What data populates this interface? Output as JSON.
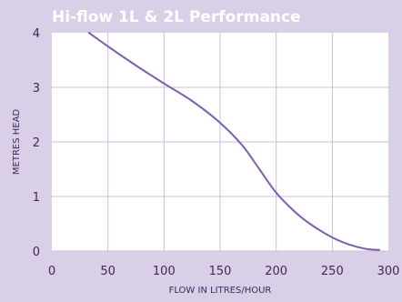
{
  "colors": {
    "background": "#d9cfe6",
    "plot_background": "#ffffff",
    "grid": "#c9bedb",
    "line": "#7e5fac",
    "title": "#ffffff",
    "text": "#3d2a57"
  },
  "chart_data": {
    "type": "line",
    "title": "Hi-flow 1L & 2L Performance",
    "xlabel": "FLOW IN LITRES/HOUR",
    "ylabel": "METRES HEAD",
    "xlim": [
      0,
      300
    ],
    "ylim": [
      0,
      4
    ],
    "xticks": [
      0,
      50,
      100,
      150,
      200,
      250,
      300
    ],
    "yticks": [
      0,
      1,
      2,
      3,
      4
    ],
    "grid": true,
    "series": [
      {
        "x": [
          33,
          50,
          75,
          100,
          125,
          150,
          170,
          185,
          200,
          215,
          230,
          250,
          265,
          280,
          292
        ],
        "y": [
          4.0,
          3.75,
          3.4,
          3.07,
          2.75,
          2.35,
          1.93,
          1.5,
          1.07,
          0.75,
          0.5,
          0.25,
          0.12,
          0.04,
          0.02
        ]
      }
    ]
  }
}
